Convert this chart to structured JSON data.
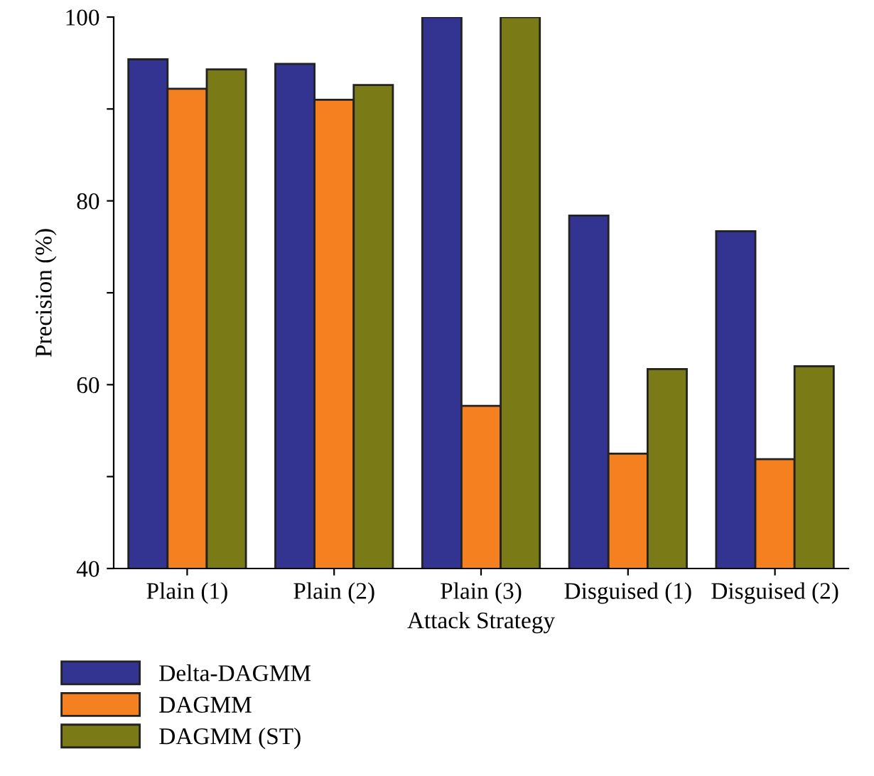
{
  "chart_data": {
    "type": "bar",
    "xlabel": "Attack Strategy",
    "ylabel": "Precision (%)",
    "categories": [
      "Plain (1)",
      "Plain (2)",
      "Plain (3)",
      "Disguised (1)",
      "Disguised (2)"
    ],
    "series": [
      {
        "name": "Delta-DAGMM",
        "color": "#333391",
        "values": [
          95.4,
          94.9,
          100,
          78.4,
          76.7
        ]
      },
      {
        "name": "DAGMM",
        "color": "#f58020",
        "values": [
          92.2,
          91.0,
          57.7,
          52.5,
          51.9
        ]
      },
      {
        "name": "DAGMM (ST)",
        "color": "#7a7b17",
        "values": [
          94.3,
          92.6,
          100,
          61.7,
          62.0
        ]
      }
    ],
    "ylim": [
      40,
      100
    ],
    "yticks": [
      40,
      {
        "value": 50,
        "label": null
      },
      60,
      {
        "value": 70,
        "label": null
      },
      80,
      {
        "value": 90,
        "label": null
      },
      100
    ],
    "grid": false,
    "legend": "bottom left"
  }
}
